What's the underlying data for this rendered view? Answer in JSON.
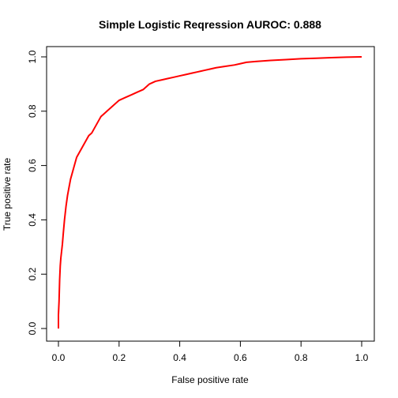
{
  "chart_data": {
    "type": "line",
    "title": "Simple Logistic Reqression AUROC: 0.888",
    "xlabel": "False positive rate",
    "ylabel": "True positive rate",
    "xlim": [
      0,
      1
    ],
    "ylim": [
      0,
      1
    ],
    "xticks": [
      "0.0",
      "0.2",
      "0.4",
      "0.6",
      "0.8",
      "1.0"
    ],
    "yticks": [
      "0.0",
      "0.2",
      "0.4",
      "0.6",
      "0.8",
      "1.0"
    ],
    "grid": false,
    "legend": "none",
    "series": [
      {
        "color": "#ff0000",
        "x": [
          0.0,
          0.0,
          0.002,
          0.004,
          0.006,
          0.008,
          0.01,
          0.013,
          0.016,
          0.02,
          0.025,
          0.03,
          0.035,
          0.04,
          0.045,
          0.05,
          0.055,
          0.06,
          0.07,
          0.08,
          0.09,
          0.1,
          0.11,
          0.12,
          0.13,
          0.14,
          0.15,
          0.16,
          0.18,
          0.2,
          0.22,
          0.24,
          0.26,
          0.28,
          0.3,
          0.32,
          0.34,
          0.36,
          0.38,
          0.4,
          0.42,
          0.44,
          0.46,
          0.48,
          0.5,
          0.52,
          0.55,
          0.58,
          0.6,
          0.62,
          0.65,
          0.7,
          0.75,
          0.8,
          0.85,
          0.9,
          0.95,
          1.0
        ],
        "y": [
          0.0,
          0.05,
          0.1,
          0.18,
          0.23,
          0.26,
          0.28,
          0.31,
          0.35,
          0.4,
          0.45,
          0.49,
          0.52,
          0.55,
          0.57,
          0.59,
          0.61,
          0.63,
          0.65,
          0.67,
          0.69,
          0.71,
          0.72,
          0.74,
          0.76,
          0.78,
          0.79,
          0.8,
          0.82,
          0.84,
          0.85,
          0.86,
          0.87,
          0.88,
          0.9,
          0.91,
          0.915,
          0.92,
          0.925,
          0.93,
          0.935,
          0.94,
          0.945,
          0.95,
          0.955,
          0.96,
          0.965,
          0.97,
          0.975,
          0.98,
          0.983,
          0.987,
          0.99,
          0.993,
          0.995,
          0.997,
          0.999,
          1.0
        ]
      }
    ]
  }
}
